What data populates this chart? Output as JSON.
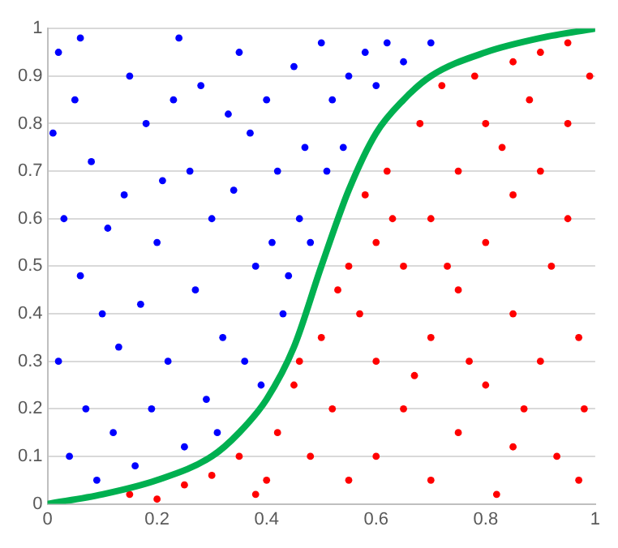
{
  "chart_data": {
    "type": "scatter",
    "xlim": [
      0,
      1
    ],
    "ylim": [
      0,
      1
    ],
    "xticks": [
      0,
      0.2,
      0.4,
      0.6,
      0.8,
      1
    ],
    "yticks": [
      0,
      0.1,
      0.2,
      0.3,
      0.4,
      0.5,
      0.6,
      0.7,
      0.8,
      0.9,
      1
    ],
    "grid": "y",
    "legend": false,
    "series": [
      {
        "color": "#0000ff",
        "marker": "circle",
        "x": [
          0.02,
          0.05,
          0.08,
          0.03,
          0.06,
          0.1,
          0.02,
          0.07,
          0.04,
          0.12,
          0.15,
          0.18,
          0.14,
          0.2,
          0.17,
          0.22,
          0.19,
          0.25,
          0.24,
          0.28,
          0.26,
          0.3,
          0.27,
          0.32,
          0.29,
          0.35,
          0.37,
          0.34,
          0.38,
          0.36,
          0.4,
          0.42,
          0.41,
          0.43,
          0.45,
          0.47,
          0.46,
          0.48,
          0.5,
          0.52,
          0.51,
          0.55,
          0.54,
          0.58,
          0.6,
          0.62,
          0.65,
          0.7,
          0.09,
          0.13,
          0.11,
          0.01,
          0.16,
          0.21,
          0.23,
          0.33,
          0.39,
          0.44,
          0.31,
          0.06
        ],
        "values": [
          0.95,
          0.85,
          0.72,
          0.6,
          0.48,
          0.4,
          0.3,
          0.2,
          0.1,
          0.15,
          0.9,
          0.8,
          0.65,
          0.55,
          0.42,
          0.3,
          0.2,
          0.12,
          0.98,
          0.88,
          0.7,
          0.6,
          0.45,
          0.35,
          0.22,
          0.95,
          0.78,
          0.66,
          0.5,
          0.3,
          0.85,
          0.7,
          0.55,
          0.4,
          0.92,
          0.75,
          0.6,
          0.55,
          0.97,
          0.85,
          0.7,
          0.9,
          0.75,
          0.95,
          0.88,
          0.97,
          0.93,
          0.97,
          0.05,
          0.33,
          0.58,
          0.78,
          0.08,
          0.68,
          0.85,
          0.82,
          0.25,
          0.48,
          0.15,
          0.98
        ]
      },
      {
        "color": "#ff0000",
        "marker": "circle",
        "x": [
          0.15,
          0.25,
          0.3,
          0.35,
          0.4,
          0.42,
          0.45,
          0.48,
          0.5,
          0.52,
          0.55,
          0.55,
          0.58,
          0.6,
          0.6,
          0.62,
          0.65,
          0.65,
          0.68,
          0.7,
          0.7,
          0.7,
          0.72,
          0.75,
          0.75,
          0.75,
          0.78,
          0.8,
          0.8,
          0.8,
          0.82,
          0.85,
          0.85,
          0.85,
          0.85,
          0.88,
          0.9,
          0.9,
          0.9,
          0.92,
          0.93,
          0.95,
          0.95,
          0.95,
          0.97,
          0.98,
          0.99,
          0.6,
          0.57,
          0.63,
          0.67,
          0.73,
          0.77,
          0.83,
          0.87,
          0.53,
          0.46,
          0.38,
          0.2,
          0.97
        ],
        "values": [
          0.02,
          0.04,
          0.06,
          0.1,
          0.05,
          0.15,
          0.25,
          0.1,
          0.35,
          0.2,
          0.5,
          0.05,
          0.65,
          0.3,
          0.1,
          0.7,
          0.5,
          0.2,
          0.8,
          0.6,
          0.35,
          0.05,
          0.88,
          0.7,
          0.45,
          0.15,
          0.9,
          0.8,
          0.55,
          0.25,
          0.02,
          0.93,
          0.65,
          0.4,
          0.12,
          0.85,
          0.95,
          0.7,
          0.3,
          0.5,
          0.1,
          0.97,
          0.8,
          0.6,
          0.35,
          0.2,
          0.9,
          0.55,
          0.4,
          0.6,
          0.27,
          0.5,
          0.3,
          0.75,
          0.2,
          0.45,
          0.3,
          0.02,
          0.01,
          0.05
        ]
      },
      {
        "type": "line",
        "color": "#00b050",
        "marker": "none",
        "line_style": "solid",
        "x": [
          0,
          0.1,
          0.2,
          0.3,
          0.35,
          0.4,
          0.45,
          0.5,
          0.55,
          0.6,
          0.65,
          0.7,
          0.8,
          0.9,
          1
        ],
        "values": [
          0,
          0.02,
          0.05,
          0.1,
          0.15,
          0.22,
          0.33,
          0.5,
          0.66,
          0.78,
          0.85,
          0.9,
          0.95,
          0.98,
          1
        ]
      }
    ]
  }
}
